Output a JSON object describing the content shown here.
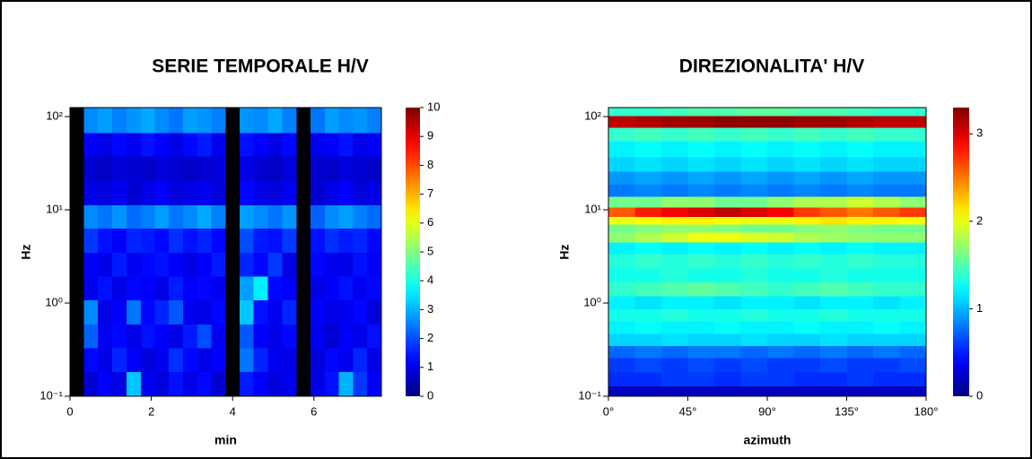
{
  "chart_data": [
    {
      "type": "heatmap",
      "title": "SERIE TEMPORALE  H/V",
      "x_label": "min",
      "y_label": "Hz",
      "x": [
        0.17,
        0.52,
        0.87,
        1.22,
        1.57,
        1.92,
        2.26,
        2.61,
        2.96,
        3.31,
        3.66,
        4.01,
        4.35,
        4.7,
        5.05,
        5.4,
        5.75,
        6.1,
        6.44,
        6.79,
        7.14,
        7.49
      ],
      "y": [
        0.135,
        0.245,
        0.44,
        0.8,
        1.45,
        2.6,
        4.7,
        8.5,
        15,
        28,
        50,
        90
      ],
      "values": [
        [
          null,
          0.8,
          1.2,
          1.0,
          3.2,
          1.1,
          0.9,
          1.4,
          1.0,
          1.3,
          0.8,
          null,
          1.5,
          1.2,
          0.9,
          1.1,
          null,
          1.0,
          1.4,
          3.0,
          1.8,
          1.2
        ],
        [
          null,
          1.3,
          1.0,
          1.6,
          1.2,
          0.9,
          1.1,
          1.7,
          1.3,
          1.0,
          1.2,
          null,
          2.4,
          1.6,
          1.1,
          1.0,
          null,
          0.9,
          1.3,
          1.1,
          1.6,
          1.0
        ],
        [
          null,
          2.2,
          1.1,
          1.3,
          1.0,
          1.4,
          1.2,
          1.0,
          1.5,
          2.0,
          1.1,
          null,
          2.1,
          1.2,
          1.0,
          1.3,
          null,
          1.1,
          0.8,
          1.2,
          1.0,
          1.4
        ],
        [
          null,
          2.6,
          1.0,
          1.2,
          2.4,
          1.3,
          1.6,
          2.1,
          1.1,
          1.0,
          1.3,
          null,
          3.2,
          1.4,
          1.1,
          1.6,
          null,
          1.2,
          1.0,
          1.1,
          1.3,
          0.9
        ],
        [
          null,
          1.1,
          1.4,
          1.0,
          1.3,
          1.2,
          1.0,
          1.5,
          1.2,
          1.3,
          1.1,
          null,
          2.8,
          3.6,
          1.3,
          1.2,
          null,
          1.0,
          1.2,
          1.4,
          1.1,
          1.3
        ],
        [
          null,
          1.2,
          1.0,
          1.5,
          1.1,
          1.3,
          1.4,
          1.2,
          1.0,
          1.2,
          1.5,
          null,
          1.6,
          1.3,
          1.8,
          1.0,
          null,
          1.3,
          1.1,
          1.0,
          1.4,
          1.2
        ],
        [
          null,
          1.8,
          1.4,
          1.2,
          1.6,
          1.5,
          1.3,
          1.7,
          1.4,
          1.6,
          1.3,
          null,
          2.0,
          1.5,
          1.4,
          1.8,
          null,
          1.4,
          1.7,
          1.5,
          1.6,
          1.3
        ],
        [
          null,
          2.6,
          2.4,
          2.7,
          2.3,
          2.5,
          2.8,
          2.4,
          2.6,
          2.9,
          2.5,
          null,
          2.8,
          2.6,
          2.4,
          2.7,
          null,
          2.2,
          2.6,
          2.8,
          2.5,
          2.3
        ],
        [
          null,
          1.0,
          0.9,
          1.1,
          0.8,
          1.0,
          1.2,
          0.9,
          1.0,
          1.1,
          0.9,
          null,
          1.3,
          1.0,
          0.9,
          1.1,
          null,
          0.8,
          1.0,
          1.2,
          0.9,
          1.0
        ],
        [
          null,
          0.8,
          0.7,
          0.9,
          0.8,
          0.7,
          0.9,
          0.8,
          0.7,
          0.8,
          0.9,
          null,
          1.0,
          0.8,
          0.7,
          0.9,
          null,
          0.8,
          0.7,
          0.9,
          0.8,
          0.7
        ],
        [
          null,
          1.2,
          1.0,
          1.3,
          1.1,
          1.4,
          1.2,
          1.0,
          1.3,
          1.5,
          1.1,
          null,
          1.4,
          1.2,
          1.0,
          1.3,
          null,
          1.1,
          1.2,
          1.4,
          1.0,
          1.2
        ],
        [
          null,
          2.6,
          2.8,
          2.5,
          2.7,
          2.9,
          2.6,
          2.4,
          2.8,
          2.7,
          2.5,
          null,
          2.7,
          2.6,
          2.9,
          2.5,
          null,
          2.4,
          2.8,
          2.6,
          2.7,
          2.5
        ]
      ],
      "xlim": [
        0,
        7.66
      ],
      "xticks": [
        0,
        2,
        4,
        6
      ],
      "ylim": [
        0.1,
        125
      ],
      "y_scale": "log",
      "yticks": [
        {
          "value": 0.1,
          "label": "10⁻¹"
        },
        {
          "value": 1,
          "label": "10⁰"
        },
        {
          "value": 10,
          "label": "10¹"
        },
        {
          "value": 100,
          "label": "10²"
        }
      ],
      "colormap": "jet",
      "clim": [
        0,
        10
      ],
      "cticks": [
        0,
        1,
        2,
        3,
        4,
        5,
        6,
        7,
        8,
        9,
        10
      ]
    },
    {
      "type": "heatmap",
      "title": "DIREZIONALITA' H/V",
      "x_label": "azimuth",
      "y_label": "Hz",
      "x": [
        7.5,
        22.5,
        37.5,
        52.5,
        67.5,
        82.5,
        97.5,
        112.5,
        127.5,
        142.5,
        157.5,
        172.5
      ],
      "y": [
        0.11,
        0.15,
        0.22,
        0.3,
        0.4,
        0.55,
        0.75,
        1,
        1.4,
        2,
        2.8,
        4,
        5,
        6.5,
        7.5,
        9.5,
        12,
        16,
        22,
        30,
        45,
        65,
        90,
        115
      ],
      "values": [
        [
          0.2,
          0.2,
          0.2,
          0.2,
          0.2,
          0.2,
          0.2,
          0.2,
          0.2,
          0.2,
          0.2,
          0.2
        ],
        [
          0.55,
          0.55,
          0.6,
          0.6,
          0.55,
          0.6,
          0.6,
          0.55,
          0.55,
          0.6,
          0.55,
          0.55
        ],
        [
          0.6,
          0.65,
          0.6,
          0.65,
          0.6,
          0.65,
          0.6,
          0.6,
          0.65,
          0.6,
          0.6,
          0.65
        ],
        [
          0.75,
          0.8,
          0.75,
          0.8,
          0.8,
          0.75,
          0.8,
          0.75,
          0.8,
          0.75,
          0.8,
          0.75
        ],
        [
          1.1,
          1.1,
          1.15,
          1.1,
          1.1,
          1.15,
          1.1,
          1.1,
          1.15,
          1.1,
          1.1,
          1.1
        ],
        [
          1.2,
          1.25,
          1.2,
          1.2,
          1.25,
          1.2,
          1.2,
          1.25,
          1.2,
          1.2,
          1.25,
          1.2
        ],
        [
          1.3,
          1.3,
          1.35,
          1.3,
          1.3,
          1.35,
          1.3,
          1.3,
          1.35,
          1.3,
          1.3,
          1.3
        ],
        [
          1.2,
          1.15,
          1.2,
          1.2,
          1.15,
          1.2,
          1.2,
          1.15,
          1.2,
          1.2,
          1.15,
          1.2
        ],
        [
          1.4,
          1.45,
          1.5,
          1.55,
          1.5,
          1.45,
          1.4,
          1.45,
          1.5,
          1.45,
          1.4,
          1.4
        ],
        [
          1.3,
          1.3,
          1.35,
          1.3,
          1.3,
          1.35,
          1.3,
          1.3,
          1.35,
          1.3,
          1.3,
          1.3
        ],
        [
          1.35,
          1.4,
          1.35,
          1.4,
          1.35,
          1.4,
          1.35,
          1.4,
          1.35,
          1.4,
          1.35,
          1.35
        ],
        [
          1.2,
          1.25,
          1.2,
          1.25,
          1.2,
          1.25,
          1.2,
          1.25,
          1.2,
          1.25,
          1.2,
          1.2
        ],
        [
          1.7,
          1.8,
          1.9,
          2.0,
          2.0,
          1.95,
          1.9,
          1.8,
          1.75,
          1.7,
          1.7,
          1.7
        ],
        [
          1.6,
          1.65,
          1.7,
          1.7,
          1.65,
          1.6,
          1.6,
          1.65,
          1.7,
          1.65,
          1.6,
          1.6
        ],
        [
          2.0,
          2.05,
          2.1,
          2.1,
          2.05,
          2.0,
          2.0,
          2.1,
          2.15,
          2.1,
          2.1,
          2.05
        ],
        [
          2.6,
          2.8,
          2.9,
          3.0,
          3.1,
          3.0,
          2.9,
          2.7,
          2.6,
          2.5,
          2.6,
          2.7
        ],
        [
          1.6,
          1.6,
          1.7,
          1.7,
          1.6,
          1.6,
          1.7,
          1.8,
          1.8,
          1.9,
          1.8,
          1.7
        ],
        [
          0.8,
          0.85,
          0.8,
          0.85,
          0.8,
          0.85,
          0.8,
          0.85,
          0.8,
          0.85,
          0.8,
          0.8
        ],
        [
          0.9,
          0.95,
          0.9,
          0.95,
          0.9,
          0.95,
          0.9,
          0.95,
          0.9,
          0.95,
          0.9,
          0.9
        ],
        [
          1.1,
          1.15,
          1.1,
          1.15,
          1.1,
          1.15,
          1.1,
          1.15,
          1.1,
          1.15,
          1.1,
          1.1
        ],
        [
          1.2,
          1.25,
          1.2,
          1.25,
          1.2,
          1.25,
          1.2,
          1.25,
          1.2,
          1.25,
          1.2,
          1.2
        ],
        [
          1.4,
          1.45,
          1.4,
          1.45,
          1.4,
          1.45,
          1.4,
          1.45,
          1.4,
          1.45,
          1.4,
          1.4
        ],
        [
          3.1,
          3.15,
          3.2,
          3.2,
          3.25,
          3.25,
          3.25,
          3.2,
          3.2,
          3.15,
          3.1,
          3.1
        ],
        [
          1.4,
          1.4,
          1.45,
          1.5,
          1.5,
          1.55,
          1.55,
          1.5,
          1.5,
          1.45,
          1.4,
          1.4
        ]
      ],
      "xlim": [
        0,
        180
      ],
      "xticks": [
        {
          "value": 0,
          "label": "0°"
        },
        {
          "value": 45,
          "label": "45°"
        },
        {
          "value": 90,
          "label": "90°"
        },
        {
          "value": 135,
          "label": "135°"
        },
        {
          "value": 180,
          "label": "180°"
        }
      ],
      "ylim": [
        0.1,
        125
      ],
      "y_scale": "log",
      "yticks": [
        {
          "value": 0.1,
          "label": "10⁻¹"
        },
        {
          "value": 1,
          "label": "10⁰"
        },
        {
          "value": 10,
          "label": "10¹"
        },
        {
          "value": 100,
          "label": "10²"
        }
      ],
      "colormap": "jet",
      "clim": [
        0,
        3.3
      ],
      "cticks": [
        0,
        1,
        2,
        3
      ]
    }
  ]
}
